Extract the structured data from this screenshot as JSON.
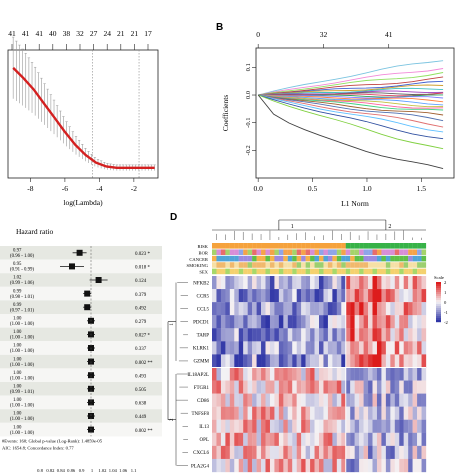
{
  "panel_labels": {
    "b": "B",
    "d": "D"
  },
  "colors": {
    "forest_row_shade": "#e6e8e2",
    "forest_row_white": "#f6f6f4",
    "heat_low": "#2f35a6",
    "heat_mid": "#f4f2f4",
    "heat_high": "#dd1c1c",
    "risk_1": "#f5a23c",
    "risk_2": "#37b247",
    "lambda_curve": "#d42020"
  },
  "chart_data": [
    {
      "type": "line",
      "panel": "A",
      "xlabel": "log(Lambda)",
      "ylabel": "",
      "xlim": [
        -9.3,
        -0.6
      ],
      "top_tick_labels": [
        "41",
        "41",
        "41",
        "40",
        "38",
        "32",
        "27",
        "24",
        "21",
        "21",
        "17"
      ],
      "x_tick_labels": [
        "-8",
        "-6",
        "-4",
        "-2"
      ],
      "x": [
        -9.0,
        -8.4,
        -7.8,
        -7.2,
        -6.6,
        -6.0,
        -5.4,
        -4.8,
        -4.2,
        -3.6,
        -3.0,
        -2.4,
        -1.8,
        -1.2,
        -0.8
      ],
      "y": [
        0.86,
        0.78,
        0.69,
        0.58,
        0.47,
        0.36,
        0.26,
        0.18,
        0.12,
        0.09,
        0.08,
        0.08,
        0.08,
        0.08,
        0.08
      ],
      "ylim": [
        0,
        1
      ],
      "vlines": [
        -4.4,
        -1.7
      ]
    },
    {
      "type": "line",
      "panel": "B",
      "xlabel": "L1 Norm",
      "ylabel": "Coefficients",
      "xlim": [
        -0.02,
        1.8
      ],
      "ylim": [
        -0.3,
        0.17
      ],
      "top_tick_labels": [
        "0",
        "32",
        "41"
      ],
      "x_tick_labels": [
        "0.0",
        "0.5",
        "1.0",
        "1.5"
      ],
      "y_tick_labels": [
        "-0.2",
        "-0.1",
        "0.0",
        "0.1"
      ],
      "series_end_values": [
        0.13,
        0.1,
        0.08,
        0.06,
        0.045,
        0.035,
        0.025,
        0.015,
        0.008,
        0.002,
        -0.005,
        -0.012,
        -0.02,
        -0.03,
        -0.04,
        -0.05,
        -0.06,
        -0.075,
        -0.09,
        -0.11,
        -0.13,
        -0.16,
        -0.2,
        -0.27
      ],
      "series_colors": [
        "#7bc4e0",
        "#f28ad9",
        "#90e060",
        "#c04040",
        "#4060d0",
        "#d0a030",
        "#40c0c0",
        "#a040c0",
        "#606060",
        "#e04060",
        "#30a060",
        "#8080ff",
        "#ff8040",
        "#60a0ff",
        "#c0c040",
        "#ff60a0",
        "#40d080",
        "#a06030",
        "#5070b0",
        "#e07070",
        "#60c0ff",
        "#3050a0",
        "#80d040",
        "#404040"
      ]
    },
    {
      "type": "forest",
      "panel": "C",
      "title": "Hazard ratio",
      "footer": [
        "#Events: 160; Global p-value (Log-Rank): 1.4859e-05",
        "AIC: 1654.8; Concordance Index: 0.77"
      ],
      "x_tick_labels": [
        "0.8",
        "0.82",
        "0.84",
        "0.86",
        "0.9",
        "1",
        "1.02",
        "1.04",
        "1.06",
        "1.1"
      ],
      "rows": [
        {
          "hr": "0.97",
          "ci": "(0.96 - 1.00)",
          "p": "0.023 *",
          "value": 0.97
        },
        {
          "hr": "0.95",
          "ci": "(0.91 - 0.99)",
          "p": "0.018 *",
          "value": 0.95
        },
        {
          "hr": "1.02",
          "ci": "(0.99 - 1.06)",
          "p": "0.124",
          "value": 1.02
        },
        {
          "hr": "0.99",
          "ci": "(0.98 - 1.01)",
          "p": "0.379",
          "value": 0.99
        },
        {
          "hr": "0.99",
          "ci": "(0.97 - 1.01)",
          "p": "0.492",
          "value": 0.99
        },
        {
          "hr": "1.00",
          "ci": "(1.00 - 1.00)",
          "p": "0.279",
          "value": 1.0
        },
        {
          "hr": "1.00",
          "ci": "(1.00 - 1.00)",
          "p": "0.027 *",
          "value": 1.0
        },
        {
          "hr": "1.00",
          "ci": "(1.00 - 1.00)",
          "p": "0.337",
          "value": 1.0
        },
        {
          "hr": "1.00",
          "ci": "(1.00 - 1.00)",
          "p": "0.002 **",
          "value": 1.0
        },
        {
          "hr": "1.00",
          "ci": "(1.00 - 1.00)",
          "p": "0.493",
          "value": 1.0
        },
        {
          "hr": "1.00",
          "ci": "(0.99 - 1.01)",
          "p": "0.505",
          "value": 1.0
        },
        {
          "hr": "1.00",
          "ci": "(1.00 - 1.00)",
          "p": "0.638",
          "value": 1.0
        },
        {
          "hr": "1.00",
          "ci": "(1.00 - 1.00)",
          "p": "0.449",
          "value": 1.0
        },
        {
          "hr": "1.00",
          "ci": "(1.00 - 1.00)",
          "p": "0.002 **",
          "value": 1.0
        }
      ]
    },
    {
      "type": "heatmap",
      "panel": "D",
      "annotation_rows": [
        "RISK",
        "BOR",
        "CANCER",
        "SMOKING",
        "SEX"
      ],
      "cluster_labels": [
        "1",
        "2"
      ],
      "row_group_labels": [
        "1",
        "2"
      ],
      "genes": [
        "NFKB2",
        "CCR5",
        "CCL5",
        "PDCD1",
        "TARP",
        "KLRK1",
        "GZMM",
        "IL18AP2L",
        "FTGR1",
        "CD86",
        "TNFSF8",
        "IL13",
        "OPL",
        "CXCL6",
        "PLA2G4"
      ],
      "legend": {
        "title": "Scale",
        "ticks": [
          "2",
          "1",
          "0",
          "-1",
          "-2"
        ]
      },
      "columns": 48,
      "cluster_split_column": 30
    }
  ]
}
